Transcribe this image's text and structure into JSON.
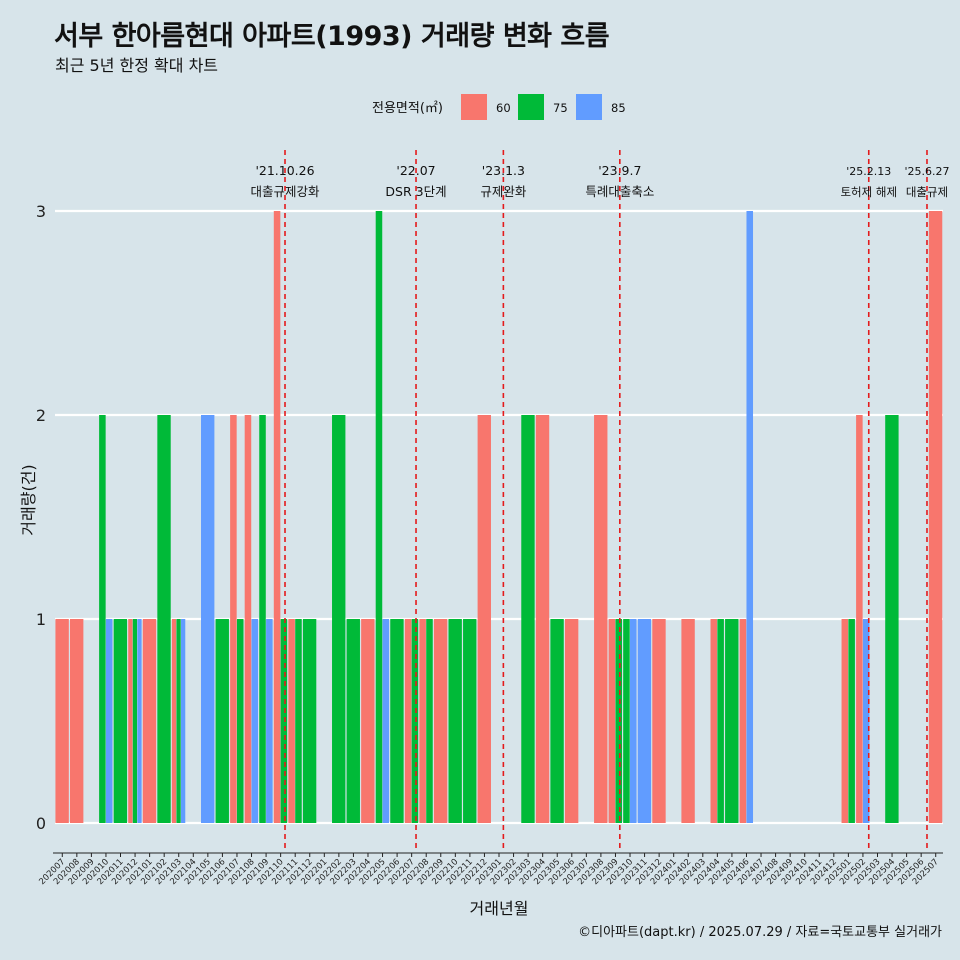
{
  "title": "서부 한아름현대 아파트(1993) 거래량 변화 흐름",
  "subtitle": "최근 5년 한정 확대 차트",
  "caption": "©디아파트(dapt.kr) / 2025.07.29 / 자료=국토교통부 실거래가",
  "colors": {
    "background": "#d7e4ea",
    "grid": "#ffffff",
    "event_line": "#e41a1c",
    "s60": "#f8766d",
    "s75": "#00ba38",
    "s85": "#619cff"
  },
  "chart_data": {
    "type": "bar",
    "xlabel": "거래년월",
    "ylabel": "거래량(건)",
    "ylim": [
      0,
      3
    ],
    "yticks": [
      0,
      1,
      2,
      3
    ],
    "legend": {
      "title": "전용면적(㎡)",
      "position": "top"
    },
    "grid": true,
    "categories": [
      "202007",
      "202008",
      "202009",
      "202010",
      "202011",
      "202012",
      "202101",
      "202102",
      "202103",
      "202104",
      "202105",
      "202106",
      "202107",
      "202108",
      "202109",
      "202110",
      "202111",
      "202112",
      "202201",
      "202202",
      "202203",
      "202204",
      "202205",
      "202206",
      "202207",
      "202208",
      "202209",
      "202210",
      "202211",
      "202212",
      "202301",
      "202302",
      "202303",
      "202304",
      "202305",
      "202306",
      "202307",
      "202308",
      "202309",
      "202310",
      "202311",
      "202312",
      "202401",
      "202402",
      "202403",
      "202404",
      "202405",
      "202406",
      "202407",
      "202408",
      "202409",
      "202410",
      "202411",
      "202412",
      "202501",
      "202502",
      "202503",
      "202504",
      "202505",
      "202506",
      "202507"
    ],
    "series": [
      {
        "name": "60",
        "color": "#f8766d",
        "values": [
          1,
          1,
          0,
          0,
          0,
          1,
          1,
          0,
          1,
          0,
          0,
          0,
          2,
          2,
          0,
          3,
          1,
          0,
          0,
          0,
          0,
          1,
          0,
          0,
          1,
          1,
          1,
          0,
          0,
          2,
          0,
          0,
          0,
          2,
          0,
          1,
          0,
          2,
          1,
          0,
          0,
          1,
          0,
          1,
          0,
          1,
          0,
          1,
          0,
          0,
          0,
          0,
          0,
          0,
          1,
          2,
          0,
          0,
          0,
          0,
          3
        ]
      },
      {
        "name": "75",
        "color": "#00ba38",
        "values": [
          0,
          0,
          0,
          2,
          1,
          1,
          0,
          2,
          1,
          0,
          0,
          1,
          1,
          0,
          2,
          1,
          1,
          1,
          0,
          2,
          1,
          0,
          3,
          1,
          1,
          1,
          0,
          1,
          1,
          0,
          0,
          0,
          2,
          0,
          1,
          0,
          0,
          0,
          1,
          1,
          0,
          0,
          0,
          0,
          0,
          1,
          1,
          0,
          0,
          0,
          0,
          0,
          0,
          0,
          1,
          0,
          0,
          2,
          0,
          0,
          0
        ]
      },
      {
        "name": "85",
        "color": "#619cff",
        "values": [
          0,
          0,
          0,
          1,
          0,
          1,
          0,
          0,
          1,
          0,
          2,
          0,
          0,
          1,
          1,
          0,
          0,
          0,
          0,
          0,
          0,
          0,
          1,
          0,
          0,
          0,
          0,
          0,
          0,
          0,
          0,
          0,
          0,
          0,
          0,
          0,
          0,
          0,
          0,
          1,
          1,
          0,
          0,
          0,
          0,
          0,
          0,
          3,
          0,
          0,
          0,
          0,
          0,
          0,
          0,
          1,
          0,
          0,
          0,
          0,
          0
        ]
      }
    ],
    "events": [
      {
        "date": "'21.10.26",
        "label": "대출규제강화",
        "x_index": 15.8
      },
      {
        "date": "'22.07",
        "label": "DSR 3단계",
        "x_index": 24.8
      },
      {
        "date": "'23.1.3",
        "label": "규제완화",
        "x_index": 30.8
      },
      {
        "date": "'23.9.7",
        "label": "특례대출축소",
        "x_index": 38.8
      },
      {
        "date": "'25.2.13",
        "label": "토허제 해제",
        "x_index": 55.9
      },
      {
        "date": "'25.6.27",
        "label": "대출규제",
        "x_index": 59.9
      }
    ]
  }
}
